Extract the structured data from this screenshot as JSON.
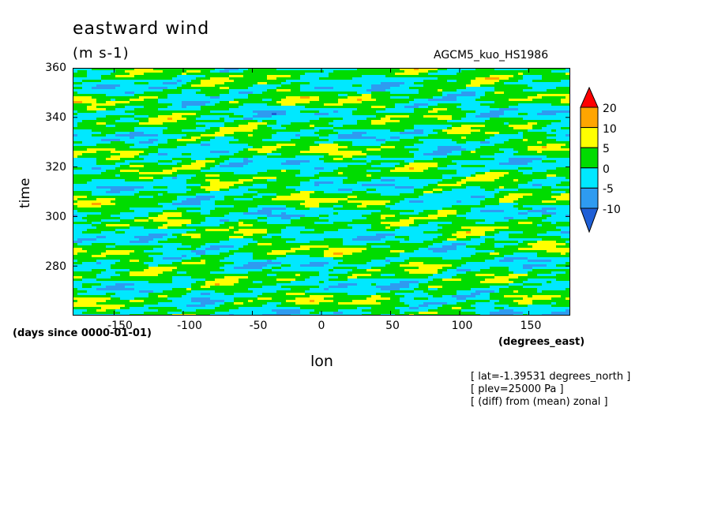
{
  "chart_data": {
    "type": "heatmap",
    "title": "eastward wind",
    "units": "(m s-1)",
    "model": "AGCM5_kuo_HS1986",
    "xlabel": "lon",
    "x_units": "(degrees_east)",
    "ylabel": "time",
    "y_units": "(days since 0000-01-01)",
    "xlim": [
      -180,
      180
    ],
    "ylim": [
      260,
      360
    ],
    "xticks": [
      "-150",
      "-100",
      "-50",
      "0",
      "50",
      "100",
      "150"
    ],
    "xtick_values": [
      -150,
      -100,
      -50,
      0,
      50,
      100,
      150
    ],
    "yticks": [
      "280",
      "300",
      "320",
      "340",
      "360"
    ],
    "ytick_values": [
      280,
      300,
      320,
      340,
      360
    ],
    "contour_levels": [
      -10,
      -5,
      0,
      5,
      10,
      20
    ],
    "colorbar_labels": [
      "20",
      "10",
      "5",
      "0",
      "-5",
      "-10"
    ],
    "colors": {
      "below_-10": "#1f5fd6",
      "-10_to_-5": "#2e9bf0",
      "-5_to_0": "#00e8ff",
      "0_to_5": "#00dc00",
      "5_to_10": "#ffff00",
      "10_to_20": "#ffa500",
      "above_20": "#ff0000"
    },
    "annotations": [
      "[ lat=-1.39531 degrees_north ]",
      "[ plev=25000 Pa ]",
      "[ (diff) from (mean) zonal ]"
    ]
  }
}
